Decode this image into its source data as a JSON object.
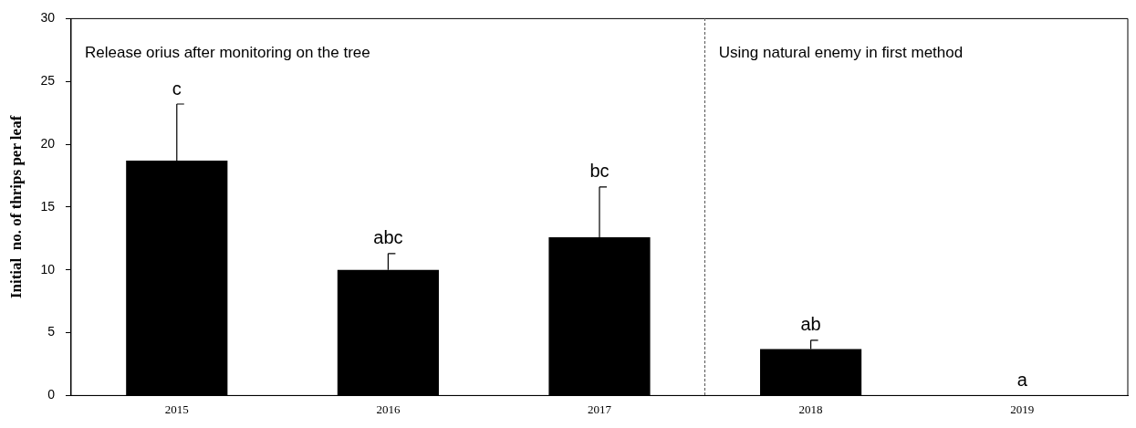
{
  "chart_data": {
    "type": "bar",
    "ylabel": "Initial  no. of thrips per leaf",
    "categories": [
      "2015",
      "2016",
      "2017",
      "2018",
      "2019"
    ],
    "values": [
      18.7,
      10.0,
      12.6,
      3.7,
      0
    ],
    "errors": [
      [
        18.7,
        23.2
      ],
      [
        10.0,
        11.3
      ],
      [
        12.6,
        16.6
      ],
      [
        3.7,
        4.4
      ],
      null
    ],
    "color": "#000000",
    "ylim": [
      0,
      30
    ],
    "yticks": [
      0,
      5,
      10,
      15,
      20,
      25,
      30
    ],
    "grid": false,
    "legend": false,
    "annotations": [
      "Release orius after monitoring on the tree",
      "Using natural enemy in first method",
      {
        "text": "c",
        "x": "2015",
        "y": 23.2
      },
      {
        "text": "abc",
        "x": "2016",
        "y": 11.3
      },
      {
        "text": "bc",
        "x": "2017",
        "y": 16.6
      },
      {
        "text": "ab",
        "x": "2018",
        "y": 4.4
      },
      {
        "text": "a",
        "x": "2019",
        "y": 0
      }
    ]
  }
}
